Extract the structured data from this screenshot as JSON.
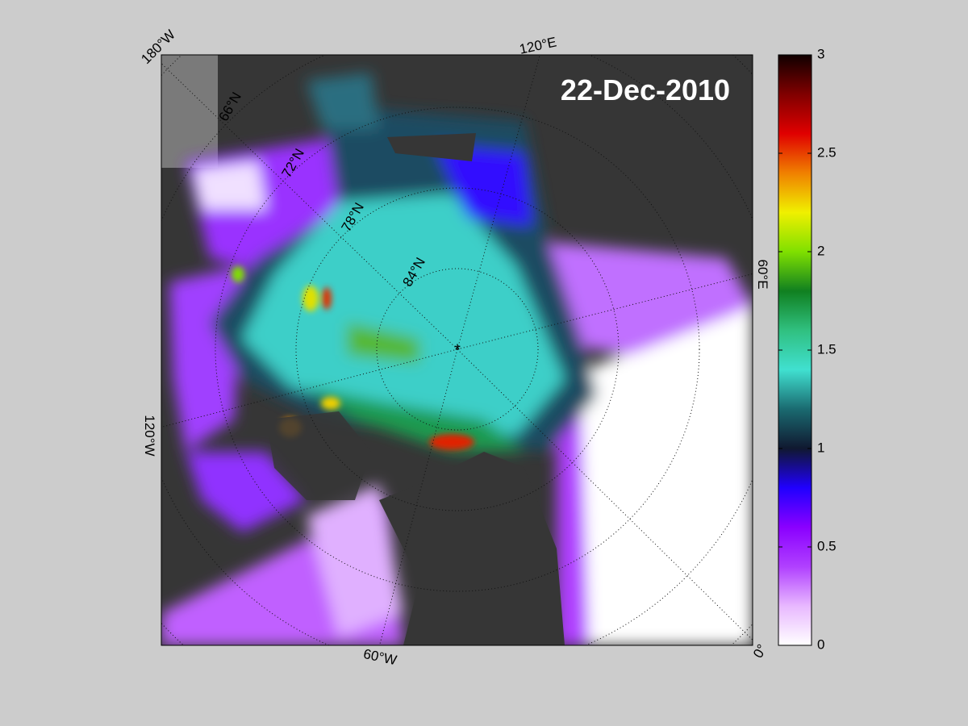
{
  "map": {
    "title": "22-Dec-2010",
    "longitude_labels": [
      "180°W",
      "120°E",
      "60°E",
      "0°",
      "60°W",
      "120°W"
    ],
    "latitude_labels": [
      "66°N",
      "72°N",
      "78°N",
      "84°N"
    ],
    "colorbar": {
      "lim": [
        0,
        3
      ],
      "ticks": [
        0,
        0.5,
        1,
        1.5,
        2,
        2.5,
        3
      ],
      "colormap": [
        "#ffffff",
        "#e8b8ff",
        "#b040ff",
        "#8a00ff",
        "#2000ff",
        "#101830",
        "#1a6a70",
        "#40e0d0",
        "#30c080",
        "#108020",
        "#80e000",
        "#f0f000",
        "#f08000",
        "#e00000",
        "#800000",
        "#100000"
      ]
    }
  }
}
